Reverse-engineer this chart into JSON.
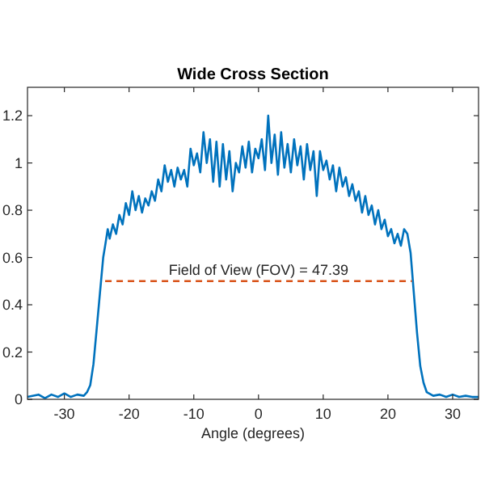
{
  "chart_data": {
    "type": "line",
    "title": "Wide Cross Section",
    "xlabel": "Angle (degrees)",
    "xlim": [
      -35.7,
      34
    ],
    "ylim": [
      0,
      1.32
    ],
    "xticks": [
      -30,
      -20,
      -10,
      0,
      10,
      20,
      30
    ],
    "yticks": [
      0,
      0.2,
      0.4,
      0.6,
      0.8,
      1,
      1.2
    ],
    "grid": false,
    "annotations": [
      {
        "text": "Field of View (FOV) = 47.39",
        "x": 0,
        "y": 0.5
      }
    ],
    "series": [
      {
        "color": "#0072bd",
        "line_style": "solid",
        "x": [
          -35.7,
          -34,
          -33,
          -32,
          -31,
          -30,
          -29,
          -28,
          -27,
          -26.5,
          -26,
          -25.5,
          -25,
          -24.5,
          -24,
          -23.7,
          -23.3,
          -23,
          -22.5,
          -22,
          -21.5,
          -21,
          -20.5,
          -20,
          -19.5,
          -19,
          -18.5,
          -18,
          -17.5,
          -17,
          -16.5,
          -16,
          -15.5,
          -15,
          -14.5,
          -14,
          -13.5,
          -13,
          -12.5,
          -12,
          -11.5,
          -11,
          -10.5,
          -10,
          -9.5,
          -9,
          -8.5,
          -8,
          -7.5,
          -7,
          -6.5,
          -6,
          -5.5,
          -5,
          -4.5,
          -4,
          -3.5,
          -3,
          -2.5,
          -2,
          -1.5,
          -1,
          -0.5,
          0,
          0.5,
          1,
          1.5,
          2,
          2.5,
          3,
          3.5,
          4,
          4.5,
          5,
          5.5,
          6,
          6.5,
          7,
          7.5,
          8,
          8.5,
          9,
          9.5,
          10,
          10.5,
          11,
          11.5,
          12,
          12.5,
          13,
          13.5,
          14,
          14.5,
          15,
          15.5,
          16,
          16.5,
          17,
          17.5,
          18,
          18.5,
          19,
          19.5,
          20,
          20.5,
          21,
          21.5,
          22,
          22.5,
          23,
          23.5,
          24,
          24.5,
          25,
          25.5,
          26,
          27,
          28,
          29,
          30,
          31,
          32,
          33,
          34
        ],
        "values": [
          0.01,
          0.02,
          0.005,
          0.02,
          0.01,
          0.025,
          0.01,
          0.02,
          0.015,
          0.03,
          0.06,
          0.15,
          0.3,
          0.45,
          0.6,
          0.65,
          0.72,
          0.68,
          0.74,
          0.7,
          0.78,
          0.74,
          0.83,
          0.78,
          0.88,
          0.8,
          0.86,
          0.79,
          0.85,
          0.82,
          0.88,
          0.84,
          0.93,
          0.88,
          0.99,
          0.92,
          0.97,
          0.9,
          0.98,
          0.93,
          0.97,
          0.9,
          1.06,
          0.99,
          1.04,
          0.96,
          1.13,
          1,
          1.1,
          0.92,
          1.09,
          0.9,
          1.08,
          0.93,
          1.05,
          0.88,
          1,
          0.96,
          1.07,
          0.98,
          1.09,
          0.96,
          1.06,
          1.02,
          1.1,
          0.97,
          1.2,
          1,
          1.12,
          0.95,
          1.13,
          0.98,
          1.08,
          0.96,
          1.1,
          0.99,
          1.07,
          0.93,
          1.08,
          0.97,
          1.05,
          0.86,
          1.05,
          0.97,
          1.01,
          0.93,
          0.99,
          0.88,
          0.98,
          0.9,
          0.94,
          0.86,
          0.91,
          0.84,
          0.88,
          0.79,
          0.86,
          0.78,
          0.82,
          0.74,
          0.8,
          0.72,
          0.76,
          0.69,
          0.72,
          0.66,
          0.7,
          0.65,
          0.72,
          0.7,
          0.62,
          0.45,
          0.28,
          0.14,
          0.07,
          0.03,
          0.015,
          0.02,
          0.01,
          0.02,
          0.01,
          0.015,
          0.01,
          0.01
        ]
      },
      {
        "color": "#d95319",
        "line_style": "dashed",
        "x": [
          -23.7,
          23.7
        ],
        "values": [
          0.5,
          0.5
        ]
      }
    ]
  }
}
